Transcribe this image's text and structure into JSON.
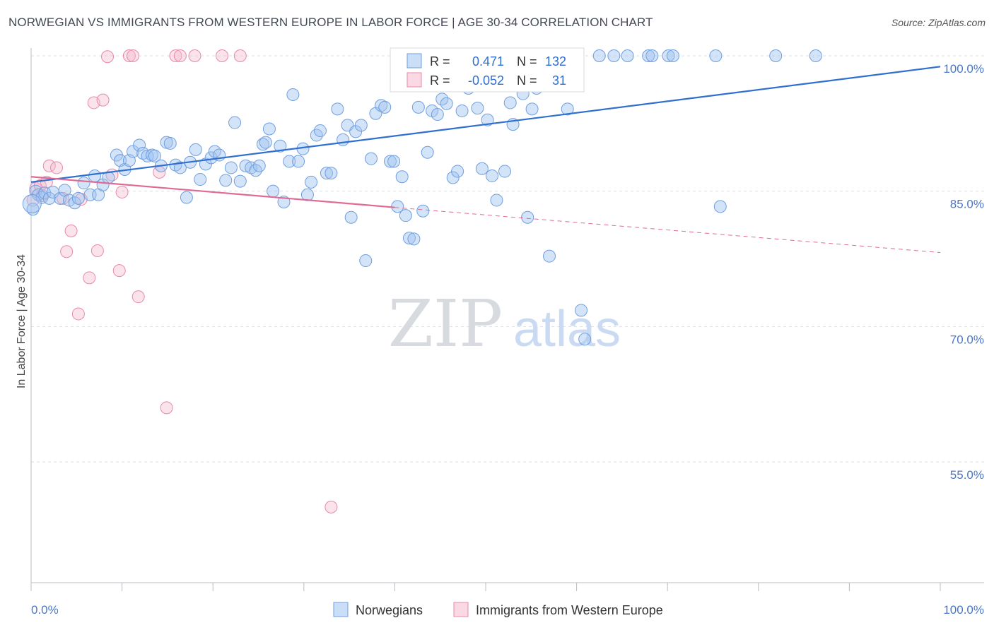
{
  "title": "NORWEGIAN VS IMMIGRANTS FROM WESTERN EUROPE IN LABOR FORCE | AGE 30-34 CORRELATION CHART",
  "source": "Source: ZipAtlas.com",
  "watermark": {
    "zip": "ZIP",
    "atlas": "atlas"
  },
  "colors": {
    "blue": "#6f9fe0",
    "blue_fill": "rgba(160,195,240,0.45)",
    "blue_line": "#2f6fd0",
    "pink": "#e88aa8",
    "pink_fill": "rgba(245,185,205,0.40)",
    "pink_line": "#e06a92",
    "grid": "#d9dde3",
    "tick_text": "#4a78c8"
  },
  "legend": {
    "r_label": "R =",
    "n_label": "N =",
    "rows": [
      {
        "r": "0.471",
        "n": "132"
      },
      {
        "r": "-0.052",
        "n": "31"
      }
    ]
  },
  "bottom_legend": [
    "Norwegians",
    "Immigrants from Western Europe"
  ],
  "chart_data": {
    "type": "scatter",
    "title": "NORWEGIAN VS IMMIGRANTS FROM WESTERN EUROPE IN LABOR FORCE | AGE 30-34 CORRELATION CHART",
    "xlabel": "",
    "ylabel": "In Labor Force | Age 30-34",
    "xlim": [
      0,
      100
    ],
    "ylim": [
      40,
      102
    ],
    "y_ticks": [
      55,
      70,
      85,
      100
    ],
    "y_tick_labels": [
      "55.0%",
      "70.0%",
      "85.0%",
      "100.0%"
    ],
    "x_tick_labels": [
      "0.0%",
      "100.0%"
    ],
    "grid": true,
    "legend_position": "top-center",
    "series": [
      {
        "name": "Norwegians",
        "r": 0.471,
        "n": 132,
        "trend": {
          "x": [
            0,
            100
          ],
          "y": [
            86.0,
            98.8
          ]
        },
        "points": [
          [
            0.2,
            83
          ],
          [
            0.5,
            85
          ],
          [
            0.8,
            84.6
          ],
          [
            1.2,
            84.3
          ],
          [
            1.5,
            84.8
          ],
          [
            2.0,
            84.2
          ],
          [
            2.4,
            84.9
          ],
          [
            3.2,
            84.2
          ],
          [
            3.7,
            85.1
          ],
          [
            4.2,
            84
          ],
          [
            4.8,
            83.7
          ],
          [
            5.2,
            84.2
          ],
          [
            5.8,
            85.9
          ],
          [
            6.5,
            84.6
          ],
          [
            7.0,
            86.7
          ],
          [
            7.4,
            84.6
          ],
          [
            7.9,
            85.7
          ],
          [
            8.5,
            86.5
          ],
          [
            9.4,
            89
          ],
          [
            9.8,
            88.4
          ],
          [
            10.3,
            87.4
          ],
          [
            10.8,
            88.4
          ],
          [
            11.2,
            89.4
          ],
          [
            11.9,
            90.1
          ],
          [
            12.3,
            89.2
          ],
          [
            12.8,
            88.9
          ],
          [
            13.3,
            89.0
          ],
          [
            13.6,
            88.9
          ],
          [
            14.3,
            87.8
          ],
          [
            14.9,
            90.4
          ],
          [
            15.3,
            90.3
          ],
          [
            15.9,
            87.9
          ],
          [
            16.4,
            87.6
          ],
          [
            17.1,
            84.3
          ],
          [
            17.5,
            88.2
          ],
          [
            18.1,
            89.6
          ],
          [
            18.6,
            86.3
          ],
          [
            19.2,
            88.0
          ],
          [
            19.8,
            88.7
          ],
          [
            20.2,
            89.4
          ],
          [
            20.7,
            89.0
          ],
          [
            21.4,
            86.2
          ],
          [
            22.0,
            87.6
          ],
          [
            22.4,
            92.6
          ],
          [
            23.0,
            86.1
          ],
          [
            23.6,
            87.8
          ],
          [
            24.2,
            87.6
          ],
          [
            24.7,
            87.3
          ],
          [
            25.1,
            87.8
          ],
          [
            25.5,
            90.2
          ],
          [
            25.8,
            90.4
          ],
          [
            26.2,
            91.9
          ],
          [
            26.6,
            85.0
          ],
          [
            27.4,
            90.0
          ],
          [
            27.8,
            83.8
          ],
          [
            28.4,
            88.3
          ],
          [
            28.8,
            95.7
          ],
          [
            29.4,
            88.3
          ],
          [
            29.9,
            89.7
          ],
          [
            30.4,
            84.6
          ],
          [
            30.8,
            86.0
          ],
          [
            31.4,
            91.2
          ],
          [
            31.8,
            91.7
          ],
          [
            32.5,
            87.0
          ],
          [
            33.0,
            87.0
          ],
          [
            33.7,
            94.1
          ],
          [
            34.3,
            90.7
          ],
          [
            34.8,
            92.3
          ],
          [
            35.2,
            82.1
          ],
          [
            35.7,
            91.6
          ],
          [
            36.3,
            92.3
          ],
          [
            36.8,
            77.3
          ],
          [
            37.4,
            88.6
          ],
          [
            37.9,
            93.6
          ],
          [
            38.5,
            94.5
          ],
          [
            38.9,
            94.3
          ],
          [
            39.5,
            88.3
          ],
          [
            39.9,
            88.3
          ],
          [
            40.3,
            83.3
          ],
          [
            40.8,
            86.6
          ],
          [
            41.2,
            82.3
          ],
          [
            41.6,
            79.8
          ],
          [
            42.1,
            79.7
          ],
          [
            42.6,
            94.3
          ],
          [
            43.1,
            82.8
          ],
          [
            43.6,
            89.3
          ],
          [
            44.1,
            93.9
          ],
          [
            44.7,
            93.5
          ],
          [
            45.2,
            95.2
          ],
          [
            45.7,
            94.7
          ],
          [
            46.4,
            86.5
          ],
          [
            46.9,
            87.2
          ],
          [
            47.4,
            93.9
          ],
          [
            48.1,
            96.4
          ],
          [
            48.5,
            99.8
          ],
          [
            49.1,
            94.2
          ],
          [
            49.6,
            87.5
          ],
          [
            50.2,
            92.9
          ],
          [
            50.7,
            86.7
          ],
          [
            51.2,
            84.0
          ],
          [
            51.7,
            99.9
          ],
          [
            52.1,
            87.2
          ],
          [
            52.7,
            94.8
          ],
          [
            53.0,
            92.4
          ],
          [
            53.6,
            100
          ],
          [
            54.1,
            95.8
          ],
          [
            54.6,
            82.1
          ],
          [
            55.1,
            94.1
          ],
          [
            55.6,
            96.4
          ],
          [
            56.1,
            100
          ],
          [
            57.0,
            77.8
          ],
          [
            58.2,
            100
          ],
          [
            59.0,
            94.1
          ],
          [
            60.5,
            71.8
          ],
          [
            60.9,
            68.6
          ],
          [
            62.5,
            100
          ],
          [
            64.1,
            100
          ],
          [
            65.6,
            100
          ],
          [
            67.9,
            100
          ],
          [
            68.3,
            100
          ],
          [
            70.1,
            100
          ],
          [
            70.6,
            100
          ],
          [
            75.3,
            100
          ],
          [
            75.8,
            83.3
          ],
          [
            81.9,
            100
          ],
          [
            86.3,
            100
          ]
        ]
      },
      {
        "name": "Immigrants from Western Europe",
        "r": -0.052,
        "n": 31,
        "trend": {
          "x": [
            0,
            40
          ],
          "y": [
            86.6,
            83.2
          ]
        },
        "trend_dashed": {
          "x": [
            40,
            100
          ],
          "y": [
            83.2,
            78.2
          ]
        },
        "points": [
          [
            0.2,
            84.0
          ],
          [
            0.5,
            85.3
          ],
          [
            1.0,
            85.6
          ],
          [
            1.7,
            86.0
          ],
          [
            2.0,
            87.8
          ],
          [
            2.8,
            87.6
          ],
          [
            3.5,
            84.2
          ],
          [
            3.9,
            78.3
          ],
          [
            4.4,
            80.6
          ],
          [
            5.2,
            71.4
          ],
          [
            5.5,
            84.1
          ],
          [
            6.4,
            75.4
          ],
          [
            6.9,
            94.8
          ],
          [
            7.3,
            78.4
          ],
          [
            7.9,
            95.1
          ],
          [
            8.4,
            99.9
          ],
          [
            8.9,
            86.8
          ],
          [
            9.7,
            76.2
          ],
          [
            10.0,
            84.9
          ],
          [
            10.8,
            100
          ],
          [
            11.2,
            100
          ],
          [
            11.8,
            73.3
          ],
          [
            14.1,
            87.1
          ],
          [
            14.9,
            61.0
          ],
          [
            15.9,
            100
          ],
          [
            16.4,
            100
          ],
          [
            18.0,
            100
          ],
          [
            21.0,
            100
          ],
          [
            23.0,
            100
          ],
          [
            33.0,
            50.0
          ],
          [
            1.2,
            84.5
          ]
        ]
      }
    ]
  }
}
